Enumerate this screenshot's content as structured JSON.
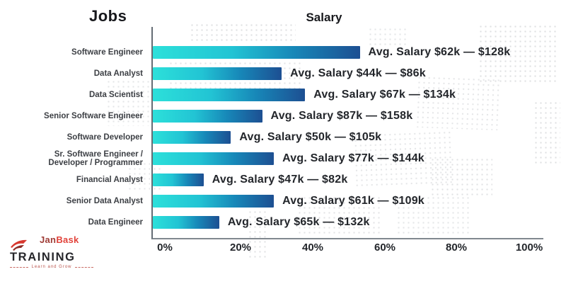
{
  "header": {
    "jobs_title": "Jobs",
    "salary_title": "Salary"
  },
  "chart_data": {
    "type": "bar",
    "orientation": "horizontal",
    "title_left": "Jobs",
    "title_top": "Salary",
    "x_ticks": [
      "0%",
      "20%",
      "40%",
      "60%",
      "80%",
      "100%"
    ],
    "xlim": [
      0,
      100
    ],
    "grid": false,
    "legend": "none",
    "bar_gradient": {
      "start": "#2CE0DA",
      "mid": "#1787B8",
      "end": "#1D4F92"
    },
    "rows": [
      {
        "job": "Software Engineer",
        "value_pct": 53,
        "annotation": "Avg. Salary $62k — $128k"
      },
      {
        "job": "Data Analyst",
        "value_pct": 33,
        "annotation": "Avg. Salary $44k — $86k"
      },
      {
        "job": "Data Scientist",
        "value_pct": 39,
        "annotation": "Avg. Salary $67k — $134k"
      },
      {
        "job": "Senior Software Engineer",
        "value_pct": 28,
        "annotation": "Avg. Salary $87k — $158k"
      },
      {
        "job": "Software Developer",
        "value_pct": 20,
        "annotation": "Avg. Salary $50k — $105k"
      },
      {
        "job": "Sr. Software Engineer / Developer / Programmer",
        "value_pct": 31,
        "annotation": "Avg. Salary $77k — $144k"
      },
      {
        "job": "Financial Analyst",
        "value_pct": 13,
        "annotation": "Avg. Salary $47k — $82k"
      },
      {
        "job": "Senior Data Analyst",
        "value_pct": 31,
        "annotation": "Avg. Salary $61k — $109k"
      },
      {
        "job": "Data Engineer",
        "value_pct": 17,
        "annotation": "Avg. Salary $65k — $132k"
      }
    ]
  },
  "logo": {
    "brand_part_1": "Jan",
    "brand_part_2": "Bask",
    "brand_line_2": "TRAINING",
    "tagline": "Learn and Grow"
  },
  "colors": {
    "bar_start": "#2CE0DA",
    "bar_end": "#1D4F92",
    "axis": "#6D757C",
    "text_dark": "#23262B",
    "logo_red": "#E2423A",
    "map_dots": "#D4D6D8"
  }
}
